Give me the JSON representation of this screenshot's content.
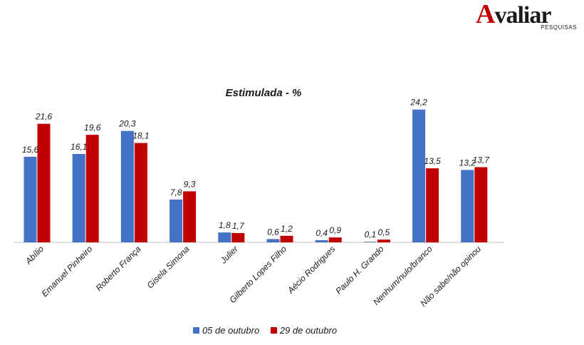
{
  "logo": {
    "brand_first": "A",
    "brand_rest": "valiar",
    "sub": "PESQUISAS"
  },
  "colors": {
    "series1": "#4472c4",
    "series2": "#c00000",
    "axis": "#bfbfbf"
  },
  "chart_data": {
    "type": "bar",
    "title": "Estimulada - %",
    "categories": [
      "Abílio",
      "Emanuel Pinheiro",
      "Roberto França",
      "Gisela Simona",
      "Julier",
      "Gilberto Lopes Filho",
      "Aécio Rodrigues",
      "Paulo H. Grando",
      "Nenhum/nulo/branco",
      "Não sabe/não opinou"
    ],
    "series": [
      {
        "name": "05 de outubro",
        "values": [
          15.6,
          16.1,
          20.3,
          7.8,
          1.8,
          0.6,
          0.4,
          0.1,
          24.2,
          13.2
        ],
        "labels": [
          "15,6",
          "16,1",
          "20,3",
          "7,8",
          "1,8",
          "0,6",
          "0,4",
          "0,1",
          "24,2",
          "13,2"
        ]
      },
      {
        "name": "29 de outubro",
        "values": [
          21.6,
          19.6,
          18.1,
          9.3,
          1.7,
          1.2,
          0.9,
          0.5,
          13.5,
          13.7
        ],
        "labels": [
          "21,6",
          "19,6",
          "18,1",
          "9,3",
          "1,7",
          "1,2",
          "0,9",
          "0,5",
          "13,5",
          "13,7"
        ]
      }
    ],
    "ylim": [
      0,
      25
    ],
    "grid": false,
    "legend_position": "bottom"
  }
}
